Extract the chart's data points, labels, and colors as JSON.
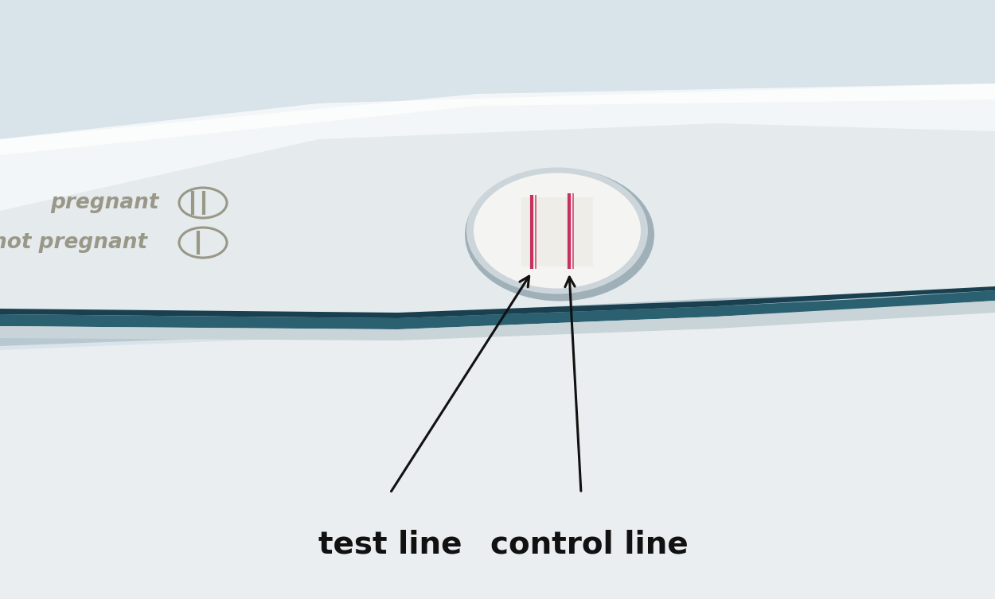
{
  "bg_top_color": "#c8d8e4",
  "bg_bottom_color": "#dde4e8",
  "stick_main_color": "#e8edf0",
  "stick_highlight": "#f2f5f7",
  "stick_shadow_top": "#b8c8d4",
  "stick_edge_color": "#a0b4c0",
  "stick_bottom_bg": "#d0d8dc",
  "blue_strip_color": "#2a6070",
  "blue_strip_light": "#3a7888",
  "bottom_surface": "#e8ecee",
  "window_fill": "#f4f4f2",
  "window_shadow": "#c0ccd2",
  "window_rim": "#d0d8dc",
  "line1_color": "#c03060",
  "line2_color": "#b82858",
  "label_test_line": "test line",
  "label_control_line": "control line",
  "label_pregnant": "pregnant",
  "label_not_pregnant": "not pregnant",
  "text_color": "#999888",
  "arrow_color": "#111111",
  "annotation_fontsize": 28,
  "key_fontsize": 19,
  "figsize": [
    12.5,
    7.53
  ]
}
